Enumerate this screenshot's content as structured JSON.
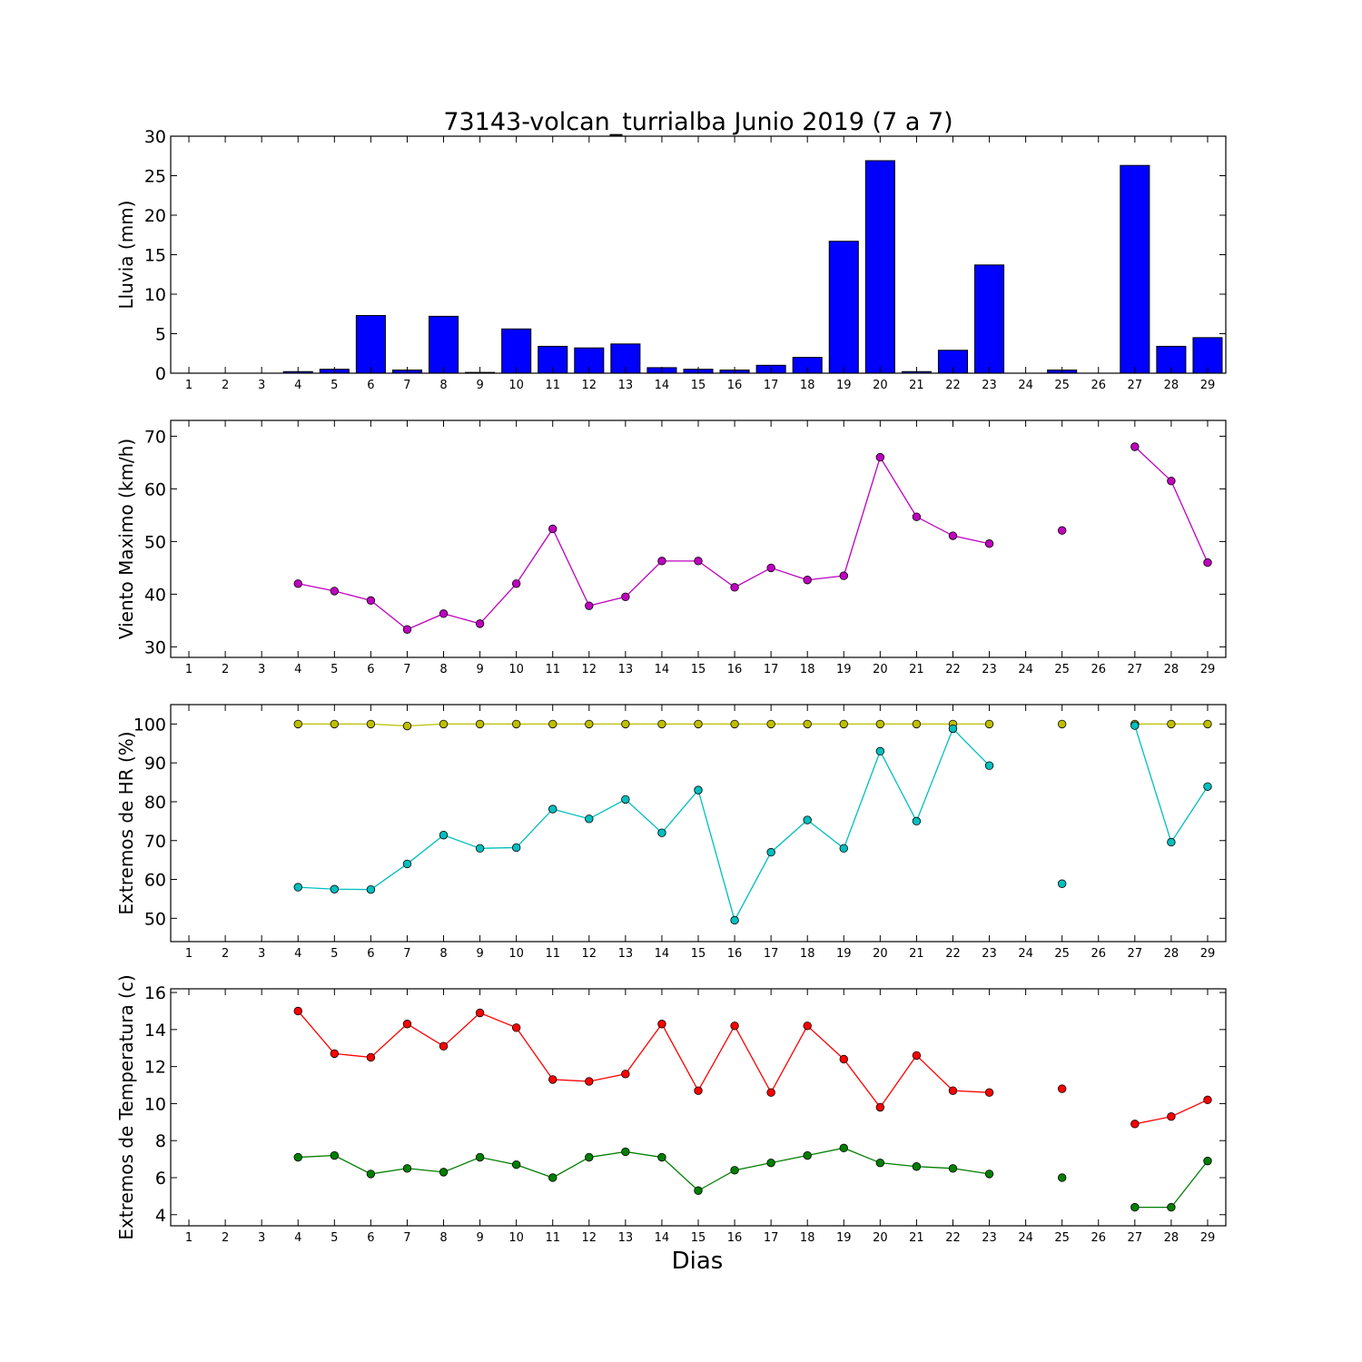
{
  "figure": {
    "title": "73143-volcan_turrialba Junio 2019  (7 a 7)",
    "xlabel": "Dias"
  },
  "chart_data": [
    {
      "type": "bar",
      "ylabel": "Lluvia (mm)",
      "x": [
        1,
        2,
        3,
        4,
        5,
        6,
        7,
        8,
        9,
        10,
        11,
        12,
        13,
        14,
        15,
        16,
        17,
        18,
        19,
        20,
        21,
        22,
        23,
        24,
        25,
        26,
        27,
        28,
        29
      ],
      "ylim": [
        0,
        30
      ],
      "yticks": [
        0,
        5,
        10,
        15,
        20,
        25,
        30
      ],
      "series": [
        {
          "color": "#0000ff",
          "values": [
            0,
            0,
            0,
            0.2,
            0.5,
            7.3,
            0.4,
            7.2,
            0.1,
            5.6,
            3.4,
            3.2,
            3.7,
            0.7,
            0.5,
            0.4,
            1.0,
            2.0,
            16.7,
            26.9,
            0.2,
            2.9,
            13.7,
            0,
            0.4,
            0,
            26.3,
            3.4,
            4.5
          ]
        }
      ]
    },
    {
      "type": "line",
      "ylabel": "Viento Maximo (km/h)",
      "x": [
        1,
        2,
        3,
        4,
        5,
        6,
        7,
        8,
        9,
        10,
        11,
        12,
        13,
        14,
        15,
        16,
        17,
        18,
        19,
        20,
        21,
        22,
        23,
        24,
        25,
        26,
        27,
        28,
        29
      ],
      "ylim": [
        28,
        73
      ],
      "yticks": [
        30,
        40,
        50,
        60,
        70
      ],
      "series": [
        {
          "color": "#bf00bf",
          "values": [
            null,
            null,
            null,
            42.0,
            40.6,
            38.8,
            33.3,
            36.3,
            34.4,
            42.0,
            52.4,
            37.8,
            39.5,
            46.3,
            46.3,
            41.3,
            45.0,
            42.7,
            43.5,
            66.0,
            54.7,
            51.1,
            49.6,
            null,
            52.1,
            null,
            68.0,
            61.5,
            46.0
          ]
        }
      ]
    },
    {
      "type": "line",
      "ylabel": "Extremos de HR (%)",
      "x": [
        1,
        2,
        3,
        4,
        5,
        6,
        7,
        8,
        9,
        10,
        11,
        12,
        13,
        14,
        15,
        16,
        17,
        18,
        19,
        20,
        21,
        22,
        23,
        24,
        25,
        26,
        27,
        28,
        29
      ],
      "ylim": [
        44,
        105
      ],
      "yticks": [
        50,
        60,
        70,
        80,
        90,
        100
      ],
      "series": [
        {
          "color": "#bfbf00",
          "values": [
            null,
            null,
            null,
            100,
            100,
            100,
            99.5,
            100,
            100,
            100,
            100,
            100,
            100,
            100,
            100,
            100,
            100,
            100,
            100,
            100,
            100,
            100,
            100,
            null,
            100,
            null,
            100,
            100,
            100
          ]
        },
        {
          "color": "#00bfbf",
          "values": [
            null,
            null,
            null,
            58,
            57.5,
            57.4,
            64,
            71.4,
            68,
            68.2,
            78.1,
            75.6,
            80.6,
            72,
            83,
            49.5,
            67,
            75.3,
            68,
            93,
            75,
            98.8,
            89.3,
            null,
            58.9,
            null,
            99.6,
            69.6,
            83.9
          ]
        }
      ]
    },
    {
      "type": "line",
      "ylabel": "Extremos de Temperatura (c)",
      "x": [
        1,
        2,
        3,
        4,
        5,
        6,
        7,
        8,
        9,
        10,
        11,
        12,
        13,
        14,
        15,
        16,
        17,
        18,
        19,
        20,
        21,
        22,
        23,
        24,
        25,
        26,
        27,
        28,
        29
      ],
      "ylim": [
        3.4,
        16.2
      ],
      "yticks": [
        4,
        6,
        8,
        10,
        12,
        14,
        16
      ],
      "series": [
        {
          "color": "#ff0000",
          "values": [
            null,
            null,
            null,
            15.0,
            12.7,
            12.5,
            14.3,
            13.1,
            14.9,
            14.1,
            11.3,
            11.2,
            11.6,
            14.3,
            10.7,
            14.2,
            10.6,
            14.2,
            12.4,
            9.8,
            12.6,
            10.7,
            10.6,
            null,
            10.8,
            null,
            8.9,
            9.3,
            10.2
          ]
        },
        {
          "color": "#007f00",
          "values": [
            null,
            null,
            null,
            7.1,
            7.2,
            6.2,
            6.5,
            6.3,
            7.1,
            6.7,
            6.0,
            7.1,
            7.4,
            7.1,
            5.3,
            6.4,
            6.8,
            7.2,
            7.6,
            6.8,
            6.6,
            6.5,
            6.2,
            null,
            6.0,
            null,
            4.4,
            4.4,
            6.9
          ]
        }
      ]
    }
  ]
}
